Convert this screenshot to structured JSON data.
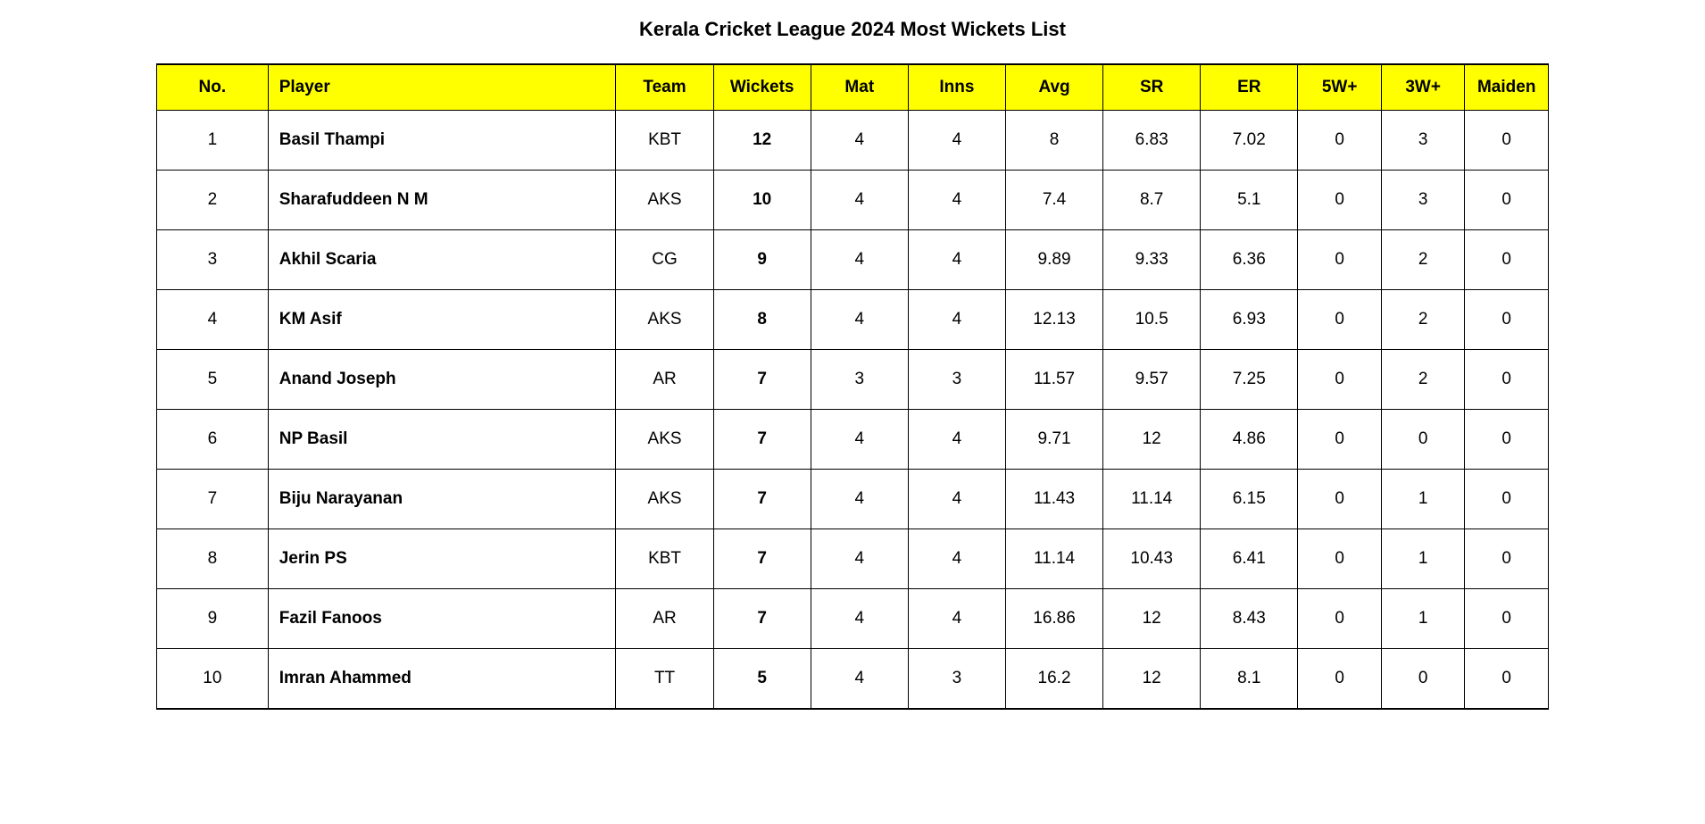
{
  "title": "Kerala Cricket League 2024 Most Wickets List",
  "table": {
    "columns": [
      {
        "key": "no",
        "label": "No.",
        "class": "col-no"
      },
      {
        "key": "player",
        "label": "Player",
        "class": "col-player"
      },
      {
        "key": "team",
        "label": "Team",
        "class": "col-team"
      },
      {
        "key": "wickets",
        "label": "Wickets",
        "class": "col-wickets"
      },
      {
        "key": "mat",
        "label": "Mat",
        "class": "col-mat"
      },
      {
        "key": "inns",
        "label": "Inns",
        "class": "col-inns"
      },
      {
        "key": "avg",
        "label": "Avg",
        "class": "col-avg"
      },
      {
        "key": "sr",
        "label": "SR",
        "class": "col-sr"
      },
      {
        "key": "er",
        "label": "ER",
        "class": "col-er"
      },
      {
        "key": "w5",
        "label": "5W+",
        "class": "col-5w"
      },
      {
        "key": "w3",
        "label": "3W+",
        "class": "col-3w"
      },
      {
        "key": "maiden",
        "label": "Maiden",
        "class": "col-maiden"
      }
    ],
    "rows": [
      {
        "no": "1",
        "player": "Basil Thampi",
        "team": "KBT",
        "wickets": "12",
        "mat": "4",
        "inns": "4",
        "avg": "8",
        "sr": "6.83",
        "er": "7.02",
        "w5": "0",
        "w3": "3",
        "maiden": "0"
      },
      {
        "no": "2",
        "player": "Sharafuddeen N M",
        "team": "AKS",
        "wickets": "10",
        "mat": "4",
        "inns": "4",
        "avg": "7.4",
        "sr": "8.7",
        "er": "5.1",
        "w5": "0",
        "w3": "3",
        "maiden": "0"
      },
      {
        "no": "3",
        "player": "Akhil Scaria",
        "team": "CG",
        "wickets": "9",
        "mat": "4",
        "inns": "4",
        "avg": "9.89",
        "sr": "9.33",
        "er": "6.36",
        "w5": "0",
        "w3": "2",
        "maiden": "0"
      },
      {
        "no": "4",
        "player": "KM Asif",
        "team": "AKS",
        "wickets": "8",
        "mat": "4",
        "inns": "4",
        "avg": "12.13",
        "sr": "10.5",
        "er": "6.93",
        "w5": "0",
        "w3": "2",
        "maiden": "0"
      },
      {
        "no": "5",
        "player": "Anand Joseph",
        "team": "AR",
        "wickets": "7",
        "mat": "3",
        "inns": "3",
        "avg": "11.57",
        "sr": "9.57",
        "er": "7.25",
        "w5": "0",
        "w3": "2",
        "maiden": "0"
      },
      {
        "no": "6",
        "player": "NP Basil",
        "team": "AKS",
        "wickets": "7",
        "mat": "4",
        "inns": "4",
        "avg": "9.71",
        "sr": "12",
        "er": "4.86",
        "w5": "0",
        "w3": "0",
        "maiden": "0"
      },
      {
        "no": "7",
        "player": "Biju Narayanan",
        "team": "AKS",
        "wickets": "7",
        "mat": "4",
        "inns": "4",
        "avg": "11.43",
        "sr": "11.14",
        "er": "6.15",
        "w5": "0",
        "w3": "1",
        "maiden": "0"
      },
      {
        "no": "8",
        "player": "Jerin PS",
        "team": "KBT",
        "wickets": "7",
        "mat": "4",
        "inns": "4",
        "avg": "11.14",
        "sr": "10.43",
        "er": "6.41",
        "w5": "0",
        "w3": "1",
        "maiden": "0"
      },
      {
        "no": "9",
        "player": "Fazil Fanoos",
        "team": "AR",
        "wickets": "7",
        "mat": "4",
        "inns": "4",
        "avg": "16.86",
        "sr": "12",
        "er": "8.43",
        "w5": "0",
        "w3": "1",
        "maiden": "0"
      },
      {
        "no": "10",
        "player": "Imran Ahammed",
        "team": "TT",
        "wickets": "5",
        "mat": "4",
        "inns": "3",
        "avg": "16.2",
        "sr": "12",
        "er": "8.1",
        "w5": "0",
        "w3": "0",
        "maiden": "0"
      }
    ],
    "header_bg_color": "#ffff00",
    "border_color": "#000000",
    "background_color": "#ffffff",
    "header_fontsize": 19,
    "cell_fontsize": 19,
    "title_fontsize": 22
  }
}
